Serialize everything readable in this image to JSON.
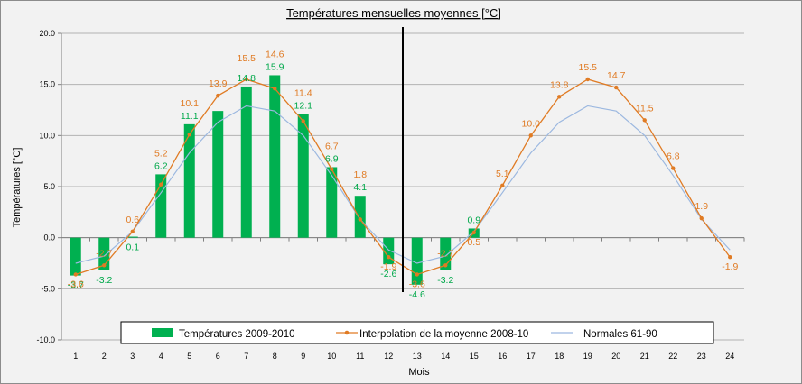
{
  "chart_data": {
    "type": "bar",
    "title": "Températures mensuelles moyennes  [°C]",
    "xlabel": "Mois",
    "ylabel": "Températures [°C]",
    "ylim": [
      -10,
      20
    ],
    "yticks": [
      "20.0",
      "15.0",
      "10.0",
      "5.0",
      "0.0",
      "-5.0",
      "-10.0"
    ],
    "ytick_values": [
      20,
      15,
      10,
      5,
      0,
      -5,
      -10
    ],
    "x": [
      1,
      2,
      3,
      4,
      5,
      6,
      7,
      8,
      9,
      10,
      11,
      12,
      13,
      14,
      15,
      16,
      17,
      18,
      19,
      20,
      21,
      22,
      23,
      24
    ],
    "xtick_labels": [
      "1",
      "2",
      "3",
      "4",
      "5",
      "6",
      "7",
      "8",
      "9",
      "10",
      "11",
      "12",
      "13",
      "14",
      "15",
      "16",
      "17",
      "18",
      "19",
      "20",
      "21",
      "22",
      "23",
      "24"
    ],
    "grid": "horizontal",
    "legend_position": "bottom-center",
    "divider_between": [
      12,
      13
    ],
    "colors": {
      "bars": "#00b050",
      "interpolation": "#e07b24",
      "normals": "#9cb8e0",
      "grid": "#b3b3b3",
      "bar_labels": "#00a84a",
      "interp_labels": "#e07b24"
    },
    "series": [
      {
        "name": "Températures 2009-2010",
        "type": "bar",
        "x": [
          1,
          2,
          3,
          4,
          5,
          6,
          7,
          8,
          9,
          10,
          11,
          12,
          13,
          14,
          15
        ],
        "values": [
          -3.7,
          -3.2,
          0.1,
          6.2,
          11.1,
          12.4,
          14.8,
          15.9,
          12.1,
          6.9,
          4.1,
          -2.6,
          -4.6,
          -3.2,
          0.9
        ],
        "labels": [
          "-3.7",
          "-3.2",
          "0.1",
          "6.2",
          "11.1",
          "",
          "14.8",
          "15.9",
          "12.1",
          "6.9",
          "4.1",
          "-2.6",
          "-4.6",
          "-3.2",
          "0.9"
        ],
        "label_visible": [
          true,
          true,
          true,
          true,
          true,
          false,
          true,
          true,
          true,
          true,
          true,
          true,
          true,
          true,
          true
        ],
        "label_below": [
          true,
          true,
          true,
          false,
          false,
          false,
          false,
          false,
          false,
          false,
          false,
          true,
          true,
          true,
          false
        ]
      },
      {
        "name": "Interpolation de la moyenne 2008-10",
        "type": "line",
        "x": [
          1,
          2,
          3,
          4,
          5,
          6,
          7,
          8,
          9,
          10,
          11,
          12,
          13,
          14,
          15,
          16,
          17,
          18,
          19,
          20,
          21,
          22,
          23,
          24
        ],
        "values": [
          -3.6,
          -2.7,
          0.6,
          5.2,
          10.1,
          13.9,
          15.5,
          14.6,
          11.4,
          6.7,
          1.8,
          -1.9,
          -3.6,
          -2.7,
          0.5,
          5.1,
          10.0,
          13.8,
          15.5,
          14.7,
          11.5,
          6.8,
          1.9,
          -1.9
        ],
        "labels": [
          "-3.6",
          "-2.7",
          "0.6",
          "5.2",
          "10.1",
          "13.9",
          "15.5",
          "14.6",
          "11.4",
          "6.7",
          "1.8",
          "-1.9",
          "-3.6",
          "-2.7",
          "0.5",
          "5.1",
          "10.0",
          "13.8",
          "15.5",
          "14.7",
          "11.5",
          "6.8",
          "1.9",
          "-1.9"
        ],
        "label_below": [
          true,
          false,
          false,
          false,
          false,
          false,
          false,
          false,
          false,
          false,
          false,
          true,
          true,
          false,
          true,
          false,
          false,
          false,
          false,
          false,
          false,
          false,
          false,
          true
        ]
      },
      {
        "name": "Normales 61-90",
        "type": "line",
        "x": [
          1,
          2,
          3,
          4,
          5,
          6,
          7,
          8,
          9,
          10,
          11,
          12,
          13,
          14,
          15,
          16,
          17,
          18,
          19,
          20,
          21,
          22,
          23,
          24
        ],
        "values": [
          -2.5,
          -1.8,
          0.6,
          4.4,
          8.3,
          11.3,
          12.9,
          12.4,
          10.0,
          6.1,
          1.8,
          -1.2,
          -2.5,
          -1.8,
          0.6,
          4.4,
          8.3,
          11.3,
          12.9,
          12.4,
          10.0,
          6.1,
          1.8,
          -1.2
        ]
      }
    ]
  }
}
